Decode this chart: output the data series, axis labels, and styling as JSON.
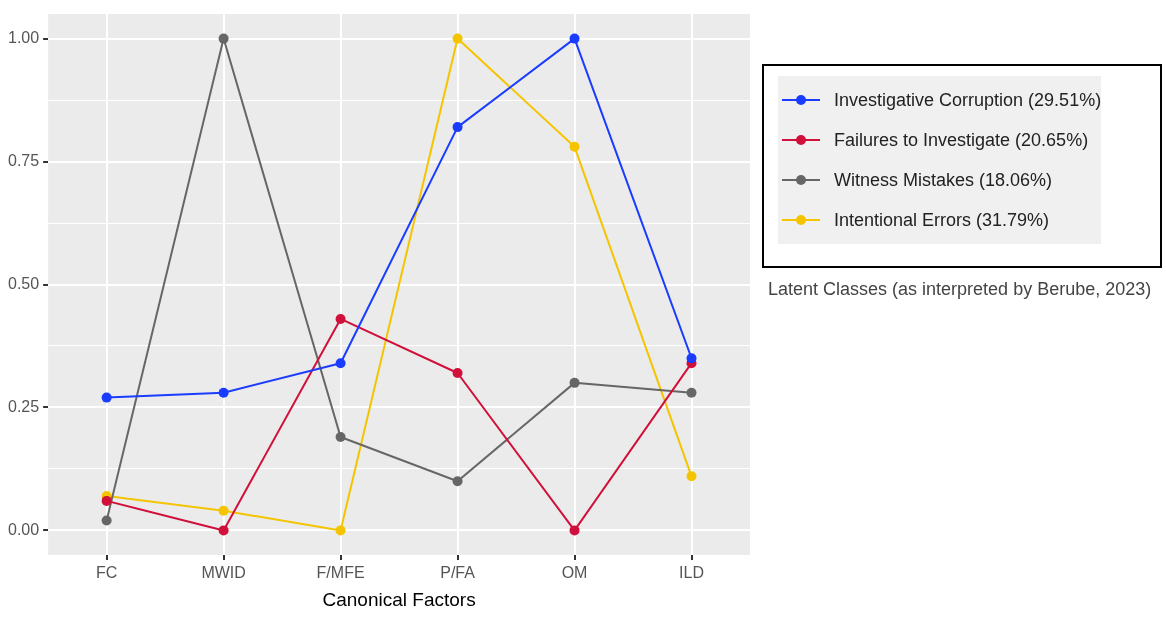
{
  "chart_data": {
    "type": "line",
    "xlabel": "Canonical Factors",
    "categories": [
      "FC",
      "MWID",
      "F/MFE",
      "P/FA",
      "OM",
      "ILD"
    ],
    "ylim": [
      -0.05,
      1.05
    ],
    "yticks": [
      {
        "value": 0,
        "label": "0.00"
      },
      {
        "value": 0.125,
        "label": null
      },
      {
        "value": 0.25,
        "label": "0.25"
      },
      {
        "value": 0.375,
        "label": null
      },
      {
        "value": 0.5,
        "label": "0.50"
      },
      {
        "value": 0.625,
        "label": null
      },
      {
        "value": 0.75,
        "label": "0.75"
      },
      {
        "value": 0.875,
        "label": null
      },
      {
        "value": 1,
        "label": "1.00"
      }
    ],
    "series": [
      {
        "name": "Investigative Corruption (29.51%)",
        "color": "#1a3cff",
        "values": [
          0.27,
          0.28,
          0.34,
          0.82,
          1.0,
          0.35
        ]
      },
      {
        "name": "Failures to Investigate (20.65%)",
        "color": "#d0103a",
        "values": [
          0.06,
          0.0,
          0.43,
          0.32,
          0.0,
          0.34
        ]
      },
      {
        "name": "Witness Mistakes (18.06%)",
        "color": "#666666",
        "values": [
          0.02,
          1.0,
          0.19,
          0.1,
          0.3,
          0.28
        ]
      },
      {
        "name": "Intentional Errors (31.79%)",
        "color": "#f5c400",
        "values": [
          0.07,
          0.04,
          0.0,
          1.0,
          0.78,
          0.11
        ]
      }
    ],
    "grid": true,
    "legend": "right",
    "marker": "circle",
    "line_style": "solid",
    "annotations": [
      "Latent Classes (as interpreted by Berube, 2023)"
    ]
  }
}
